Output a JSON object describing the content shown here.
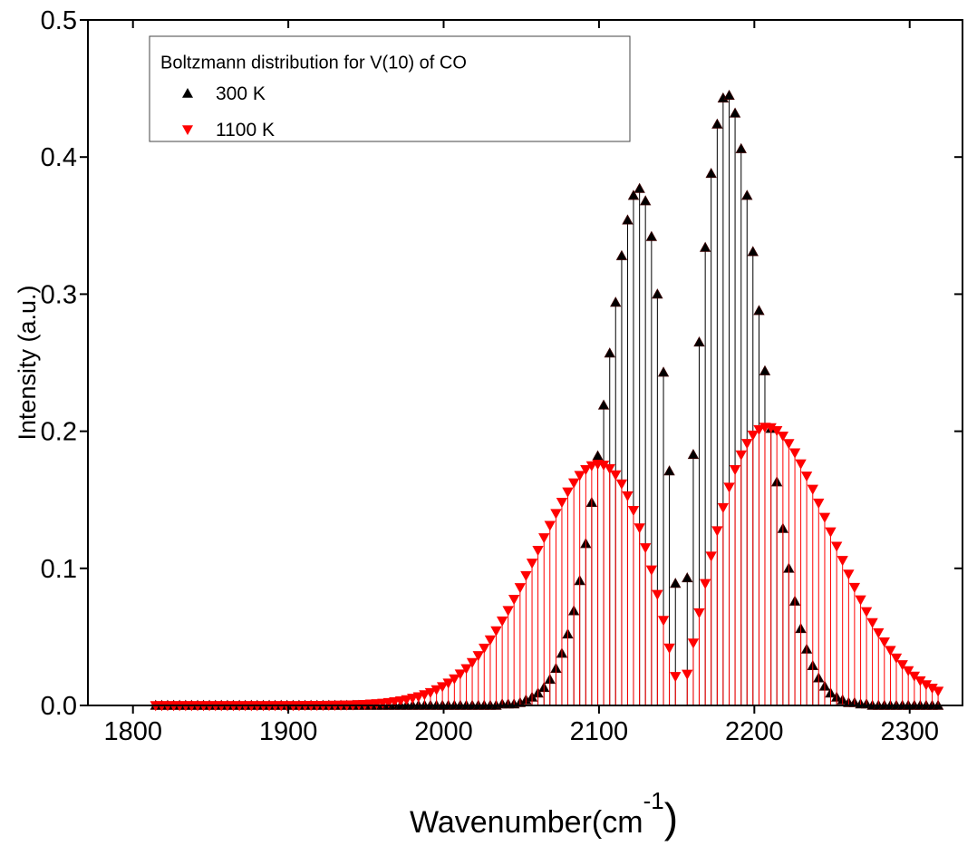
{
  "chart_data": {
    "type": "stem",
    "y_label": "Intensity (a.u.)",
    "x_label": [
      "Wavenumber(cm",
      "-1",
      ")"
    ],
    "legend": {
      "title": "Boltzmann distribution for V(10) of CO",
      "position": "upper left"
    },
    "xlim": [
      1771,
      2334
    ],
    "ylim": [
      0,
      0.5
    ],
    "xticks": [
      1800,
      1900,
      2000,
      2100,
      2200,
      2300
    ],
    "yticks": [
      {
        "value": 0,
        "label": "0.0"
      },
      0.1,
      0.2,
      0.3,
      0.4,
      0.5
    ],
    "x": [
      1814.6,
      1818.5,
      1822.3,
      1826.2,
      1830.0,
      1833.9,
      1837.7,
      1841.6,
      1845.4,
      1849.2,
      1853.1,
      1856.9,
      1860.8,
      1864.6,
      1868.5,
      1872.3,
      1876.2,
      1880.0,
      1883.9,
      1887.7,
      1891.5,
      1895.4,
      1899.2,
      1903.1,
      1906.9,
      1910.8,
      1914.6,
      1918.5,
      1922.3,
      1926.1,
      1930.0,
      1933.8,
      1937.7,
      1941.5,
      1945.4,
      1949.2,
      1953.1,
      1956.9,
      1960.8,
      1964.6,
      1968.4,
      1972.3,
      1976.1,
      1980.0,
      1983.8,
      1987.7,
      1991.5,
      1995.4,
      1999.2,
      2003.0,
      2006.9,
      2010.7,
      2014.6,
      2018.4,
      2022.3,
      2026.1,
      2030.0,
      2033.8,
      2037.7,
      2041.5,
      2045.3,
      2049.2,
      2053.0,
      2056.9,
      2060.7,
      2064.6,
      2068.4,
      2072.3,
      2076.1,
      2079.9,
      2083.8,
      2087.6,
      2091.5,
      2095.3,
      2099.2,
      2103.0,
      2106.9,
      2110.7,
      2114.6,
      2118.4,
      2122.2,
      2126.1,
      2129.9,
      2133.8,
      2137.6,
      2141.5,
      2145.3,
      2149.2,
      2156.8,
      2160.7,
      2164.5,
      2168.4,
      2172.2,
      2176.1,
      2179.9,
      2183.8,
      2187.6,
      2191.5,
      2195.3,
      2199.1,
      2203.0,
      2206.8,
      2210.7,
      2214.5,
      2218.4,
      2222.2,
      2226.1,
      2229.9,
      2233.7,
      2237.6,
      2241.4,
      2245.3,
      2249.1,
      2253.0,
      2256.8,
      2260.7,
      2264.5,
      2268.4,
      2272.2,
      2276.0,
      2279.9,
      2283.7,
      2287.6,
      2291.4,
      2295.3,
      2299.1,
      2303.0,
      2306.8,
      2310.6,
      2314.5,
      2318.3
    ],
    "series": [
      {
        "name": "300 K",
        "color": "#000000",
        "marker": "triangle-up",
        "values": [
          0,
          0,
          0,
          0,
          0,
          0,
          0,
          0,
          0,
          0,
          0,
          0,
          0,
          0,
          0,
          0,
          0,
          0,
          0,
          0,
          0,
          0,
          0,
          0,
          0,
          0,
          0,
          0,
          0,
          0,
          0,
          0,
          0,
          0,
          0,
          0,
          0,
          0,
          0,
          0,
          0,
          0,
          0,
          0,
          0,
          0,
          0,
          0,
          0,
          0,
          0,
          0,
          0,
          0,
          0,
          0,
          0,
          0,
          0.001,
          0.001,
          0.001,
          0.002,
          0.004,
          0.006,
          0.009,
          0.013,
          0.019,
          0.027,
          0.038,
          0.052,
          0.069,
          0.091,
          0.118,
          0.148,
          0.182,
          0.219,
          0.257,
          0.294,
          0.328,
          0.354,
          0.372,
          0.377,
          0.368,
          0.342,
          0.3,
          0.243,
          0.171,
          0.089,
          0.093,
          0.183,
          0.265,
          0.334,
          0.388,
          0.424,
          0.443,
          0.445,
          0.432,
          0.406,
          0.372,
          0.331,
          0.288,
          0.244,
          0.202,
          0.163,
          0.129,
          0.1,
          0.076,
          0.056,
          0.041,
          0.029,
          0.02,
          0.014,
          0.009,
          0.006,
          0.004,
          0.002,
          0.002,
          0.001,
          0.001,
          0,
          0,
          0,
          0,
          0,
          0,
          0,
          0,
          0,
          0,
          0,
          0
        ]
      },
      {
        "name": "1100 K",
        "color": "#ff0000",
        "marker": "triangle-down",
        "values": [
          0,
          0,
          0,
          0,
          0,
          0,
          0,
          0,
          0,
          0,
          0,
          0,
          0,
          0,
          0,
          0,
          0,
          0,
          0,
          0,
          0,
          0,
          0,
          0,
          0,
          0.0001,
          0.0001,
          0.0001,
          0.0001,
          0.0002,
          0.0002,
          0.0003,
          0.0004,
          0.0005,
          0.0007,
          0.0008,
          0.0011,
          0.0014,
          0.0017,
          0.0022,
          0.0028,
          0.0034,
          0.0043,
          0.0053,
          0.0064,
          0.0079,
          0.0095,
          0.0115,
          0.0138,
          0.0164,
          0.0195,
          0.023,
          0.0269,
          0.0314,
          0.0364,
          0.0419,
          0.0479,
          0.0545,
          0.0617,
          0.0693,
          0.0775,
          0.086,
          0.0948,
          0.1039,
          0.1132,
          0.1224,
          0.1314,
          0.1401,
          0.1483,
          0.1558,
          0.1624,
          0.1679,
          0.1721,
          0.1749,
          0.176,
          0.1754,
          0.1728,
          0.1683,
          0.1617,
          0.153,
          0.1423,
          0.1296,
          0.1151,
          0.0989,
          0.0811,
          0.0621,
          0.042,
          0.0212,
          0.0229,
          0.0456,
          0.0677,
          0.089,
          0.109,
          0.1275,
          0.1444,
          0.1593,
          0.1721,
          0.1828,
          0.1912,
          0.1973,
          0.2013,
          0.203,
          0.2027,
          0.2005,
          0.1966,
          0.1911,
          0.1843,
          0.1763,
          0.1674,
          0.1578,
          0.1477,
          0.1373,
          0.1267,
          0.1162,
          0.1059,
          0.0959,
          0.0862,
          0.0771,
          0.0685,
          0.0605,
          0.0531,
          0.0464,
          0.0402,
          0.0347,
          0.0298,
          0.0254,
          0.0215,
          0.0181,
          0.0152,
          0.0127,
          0.0105
        ]
      }
    ]
  }
}
